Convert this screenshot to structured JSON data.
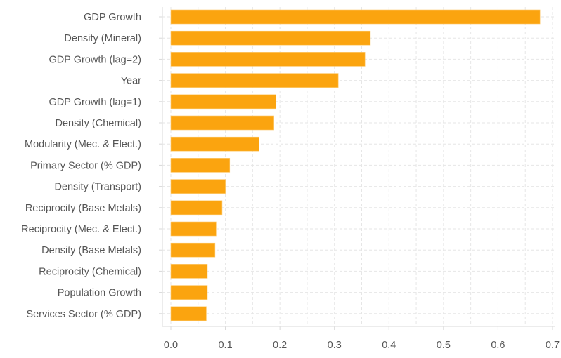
{
  "chart_data": {
    "type": "bar",
    "orientation": "horizontal",
    "title": "",
    "xlabel": "",
    "ylabel": "",
    "categories": [
      "GDP Growth",
      "Density (Mineral)",
      "GDP Growth (lag=2)",
      "Year",
      "GDP Growth (lag=1)",
      "Density (Chemical)",
      "Modularity (Mec. & Elect.)",
      "Primary Sector (% GDP)",
      "Density (Transport)",
      "Reciprocity (Base Metals)",
      "Reciprocity (Mec. & Elect.)",
      "Density (Base Metals)",
      "Reciprocity (Chemical)",
      "Population Growth",
      "Services Sector (% GDP)"
    ],
    "values": [
      0.677,
      0.366,
      0.356,
      0.307,
      0.193,
      0.189,
      0.162,
      0.108,
      0.1,
      0.094,
      0.083,
      0.081,
      0.067,
      0.067,
      0.065
    ],
    "xlim": [
      0.0,
      0.7
    ],
    "xticks": [
      "0.0",
      "0.1",
      "0.2",
      "0.3",
      "0.4",
      "0.5",
      "0.6",
      "0.7"
    ],
    "xtick_values": [
      0.0,
      0.1,
      0.2,
      0.3,
      0.4,
      0.5,
      0.6,
      0.7
    ],
    "grid": true,
    "legend": "none",
    "bar_color": "#fba40f"
  }
}
